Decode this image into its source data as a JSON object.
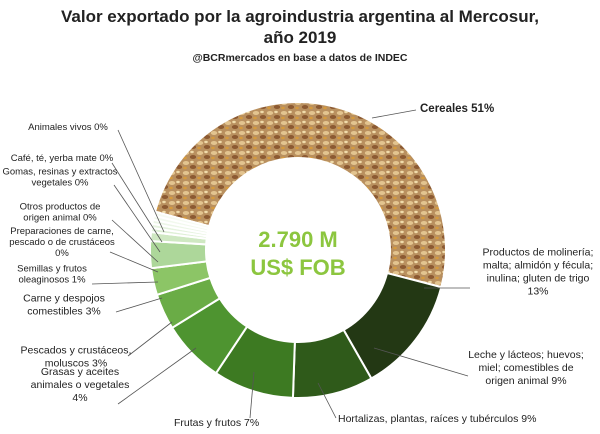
{
  "chart_data": {
    "type": "pie",
    "title_line1": "Valor exportado por la agroindustria argentina al Mercosur,",
    "title_line2": "año 2019",
    "subtitle": "@BCRmercados en base a datos de INDEC",
    "center_value": "2.790 M",
    "center_unit": "US$ FOB",
    "center_color": "#8cc63f",
    "slices": [
      {
        "name": "Cereales",
        "value": 51,
        "label": [
          "Cereales 51%"
        ],
        "color": "#c9a26b"
      },
      {
        "name": "Productos de molinería; malta; almidón y fécula; inulina; gluten de trigo",
        "value": 13,
        "label": [
          "Productos de molinería;",
          "malta; almidón y fécula;",
          "inulina; gluten de trigo",
          "13%"
        ],
        "color": "#233814"
      },
      {
        "name": "Leche y lácteos; huevos; miel; comestibles de origen animal",
        "value": 9,
        "label": [
          "Leche y lácteos; huevos;",
          "miel; comestibles de",
          "origen animal 9%"
        ],
        "color": "#2f5a1a"
      },
      {
        "name": "Hortalizas, plantas, raíces y tubérculos",
        "value": 9,
        "label": [
          "Hortalizas, plantas, raíces y tubérculos 9%"
        ],
        "color": "#3d7a22"
      },
      {
        "name": "Frutas y frutos",
        "value": 7,
        "label": [
          "Frutas y frutos 7%"
        ],
        "color": "#4e9430"
      },
      {
        "name": "Grasas y aceites animales o vegetales",
        "value": 4,
        "label": [
          "Grasas y aceites",
          "animales o vegetales",
          "4%"
        ],
        "color": "#6aac46"
      },
      {
        "name": "Pescados y crustáceos, moluscos",
        "value": 3,
        "label": [
          "Pescados y crustáceos,",
          "moluscos 3%"
        ],
        "color": "#8cc566"
      },
      {
        "name": "Carne y despojos comestibles",
        "value": 3,
        "label": [
          "Carne y despojos",
          "comestibles 3%"
        ],
        "color": "#add79a"
      },
      {
        "name": "Semillas y frutos oleaginosos",
        "value": 1,
        "label": [
          "Semillas y frutos",
          "oleaginosos 1%"
        ],
        "color": "#cfe8c2"
      },
      {
        "name": "Preparaciones de carne, pescado o de crustáceos",
        "value": 0,
        "label": [
          "Preparaciones de carne,",
          "pescado o de crustáceos",
          "0%"
        ],
        "color": "#dff0d6"
      },
      {
        "name": "Otros productos de origen animal",
        "value": 0,
        "label": [
          "Otros productos de",
          "origen animal 0%"
        ],
        "color": "#e6f3df"
      },
      {
        "name": "Gomas, resinas y extractos vegetales",
        "value": 0,
        "label": [
          "Gomas, resinas y extractos",
          "vegetales 0%"
        ],
        "color": "#edf6e8"
      },
      {
        "name": "Café, té, yerba mate",
        "value": 0,
        "label": [
          "Café, té, yerba mate 0%"
        ],
        "color": "#f2f9ee"
      },
      {
        "name": "Animales vivos",
        "value": 0,
        "label": [
          "Animales vivos 0%"
        ],
        "color": "#f6fbf3"
      }
    ]
  }
}
